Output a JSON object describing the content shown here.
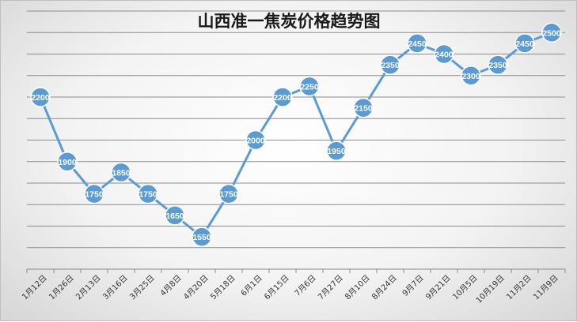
{
  "chart_data": {
    "type": "line",
    "title": "山西准一焦炭价格趋势图",
    "categories": [
      "1月12日",
      "1月26日",
      "2月13日",
      "3月16日",
      "3月25日",
      "4月8日",
      "4月20日",
      "5月18日",
      "6月1日",
      "6月15日",
      "7月6日",
      "7月27日",
      "8月10日",
      "8月24日",
      "9月7日",
      "9月21日",
      "10月5日",
      "10月19日",
      "11月2日",
      "11月9日"
    ],
    "series": [
      {
        "values": [
          2200,
          1900,
          1750,
          1850,
          1750,
          1650,
          1550,
          1750,
          2000,
          2200,
          2250,
          1950,
          2150,
          2350,
          2450,
          2400,
          2300,
          2350,
          2450,
          2500
        ]
      }
    ],
    "ylim": [
      1400,
      2600
    ],
    "y_grid_step": 100,
    "grid": true,
    "y_tick_labels": false,
    "legend": "none",
    "colors": {
      "line": "#5b9bd5",
      "marker": "#5b9bd5",
      "grid": "#8c8c8c"
    }
  }
}
